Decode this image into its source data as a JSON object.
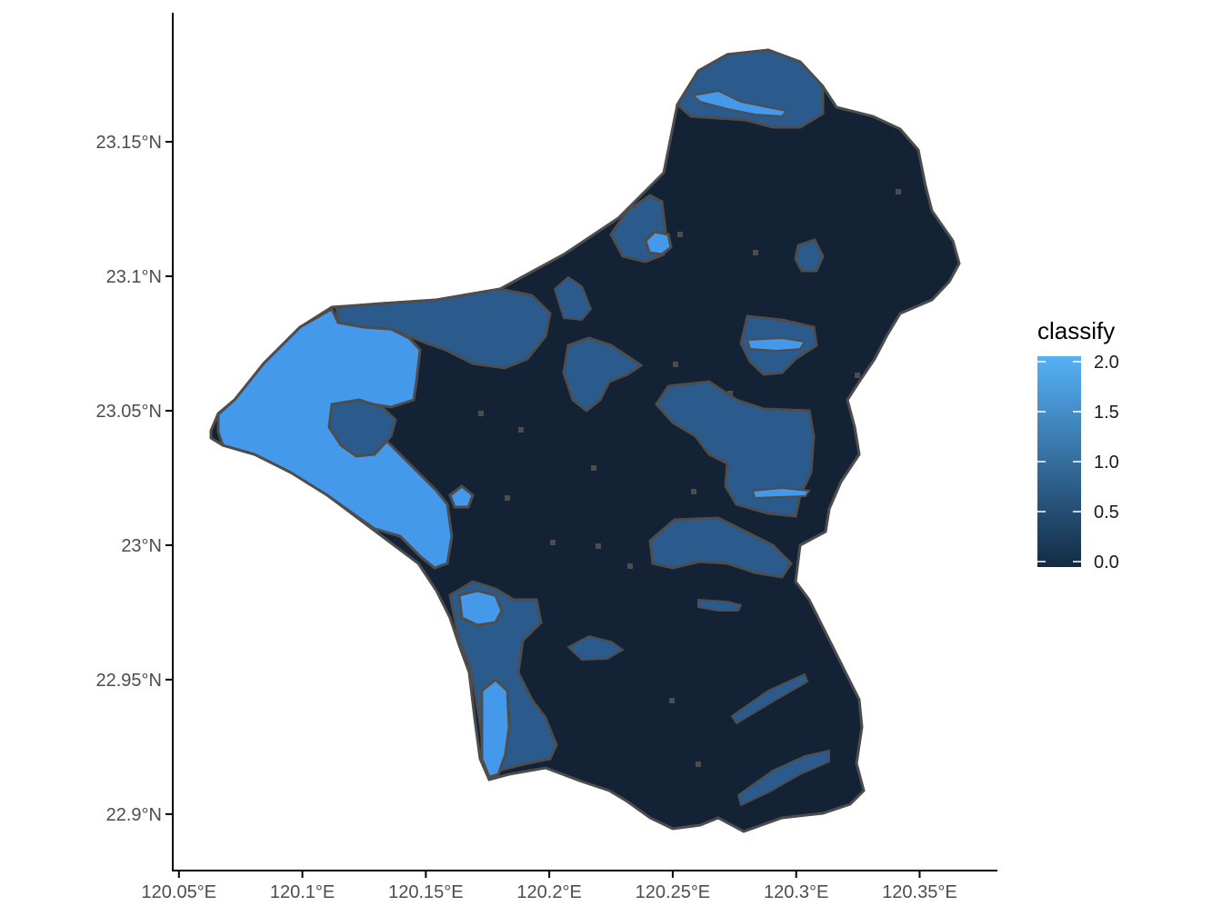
{
  "chart_data": {
    "type": "raster-map",
    "x_axis": {
      "ticks": [
        120.05,
        120.1,
        120.15,
        120.2,
        120.25,
        120.3,
        120.35
      ],
      "tick_labels": [
        "120.05°E",
        "120.1°E",
        "120.15°E",
        "120.2°E",
        "120.25°E",
        "120.3°E",
        "120.35°E"
      ],
      "range": [
        120.0475,
        120.3815
      ]
    },
    "y_axis": {
      "ticks": [
        22.9,
        22.95,
        23.0,
        23.05,
        23.1,
        23.15
      ],
      "tick_labels": [
        "22.9°N",
        "22.95°N",
        "23°N",
        "23.05°N",
        "23.1°N",
        "23.15°N"
      ],
      "range": [
        22.879,
        23.198
      ]
    },
    "legend": {
      "title": "classify",
      "breaks": [
        2.0,
        1.5,
        1.0,
        0.5,
        0.0
      ],
      "break_labels": [
        "2.0",
        "1.5",
        "1.0",
        "0.5",
        "0.0"
      ],
      "range": [
        0,
        2
      ],
      "placement": "right",
      "color_low": "#132B43",
      "color_high": "#56B1F7"
    },
    "classes": [
      {
        "value": 0,
        "color": "#132234"
      },
      {
        "value": 1,
        "color": "#2a5b8c"
      },
      {
        "value": 2,
        "color": "#4599ea"
      }
    ],
    "outline_color": "#4d4d4d",
    "grid": false
  }
}
